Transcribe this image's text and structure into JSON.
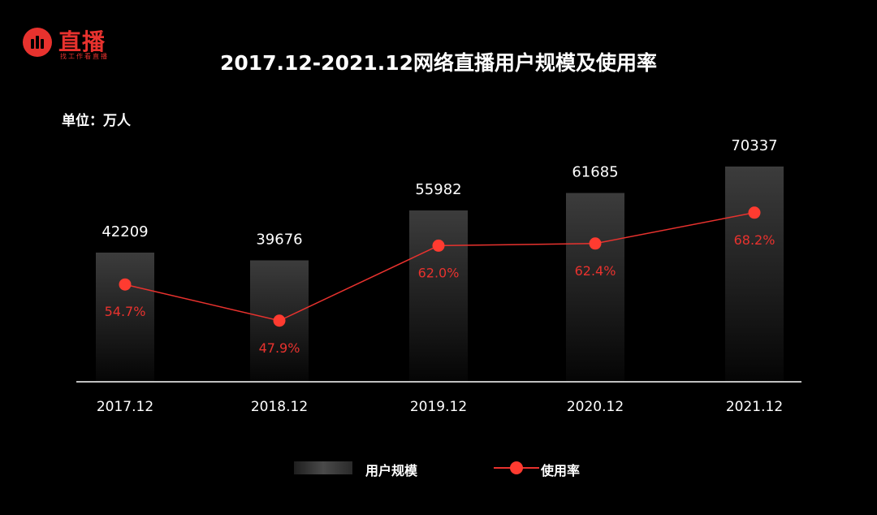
{
  "logo": {
    "name": "直播",
    "slogan": "找工作看直播"
  },
  "chart_data": {
    "type": "bar",
    "title": "2017.12-2021.12网络直播用户规模及使用率",
    "unit": "单位：万人",
    "categories": [
      "2017.12",
      "2018.12",
      "2019.12",
      "2020.12",
      "2021.12"
    ],
    "series": [
      {
        "name": "用户规模",
        "type": "bar",
        "values": [
          42209,
          39676,
          55982,
          61685,
          70337
        ]
      },
      {
        "name": "使用率",
        "type": "line",
        "values": [
          54.7,
          47.9,
          62.0,
          62.4,
          68.2
        ],
        "labels": [
          "54.7%",
          "47.9%",
          "62.0%",
          "62.4%",
          "68.2%"
        ]
      }
    ],
    "legend": "bottom-center",
    "grid": false,
    "colors": {
      "line": "#e8322e",
      "dot": "#ff3b30",
      "rate_label": "#e8322e",
      "bar_top": "#3a3a3a",
      "background": "#000000"
    }
  }
}
